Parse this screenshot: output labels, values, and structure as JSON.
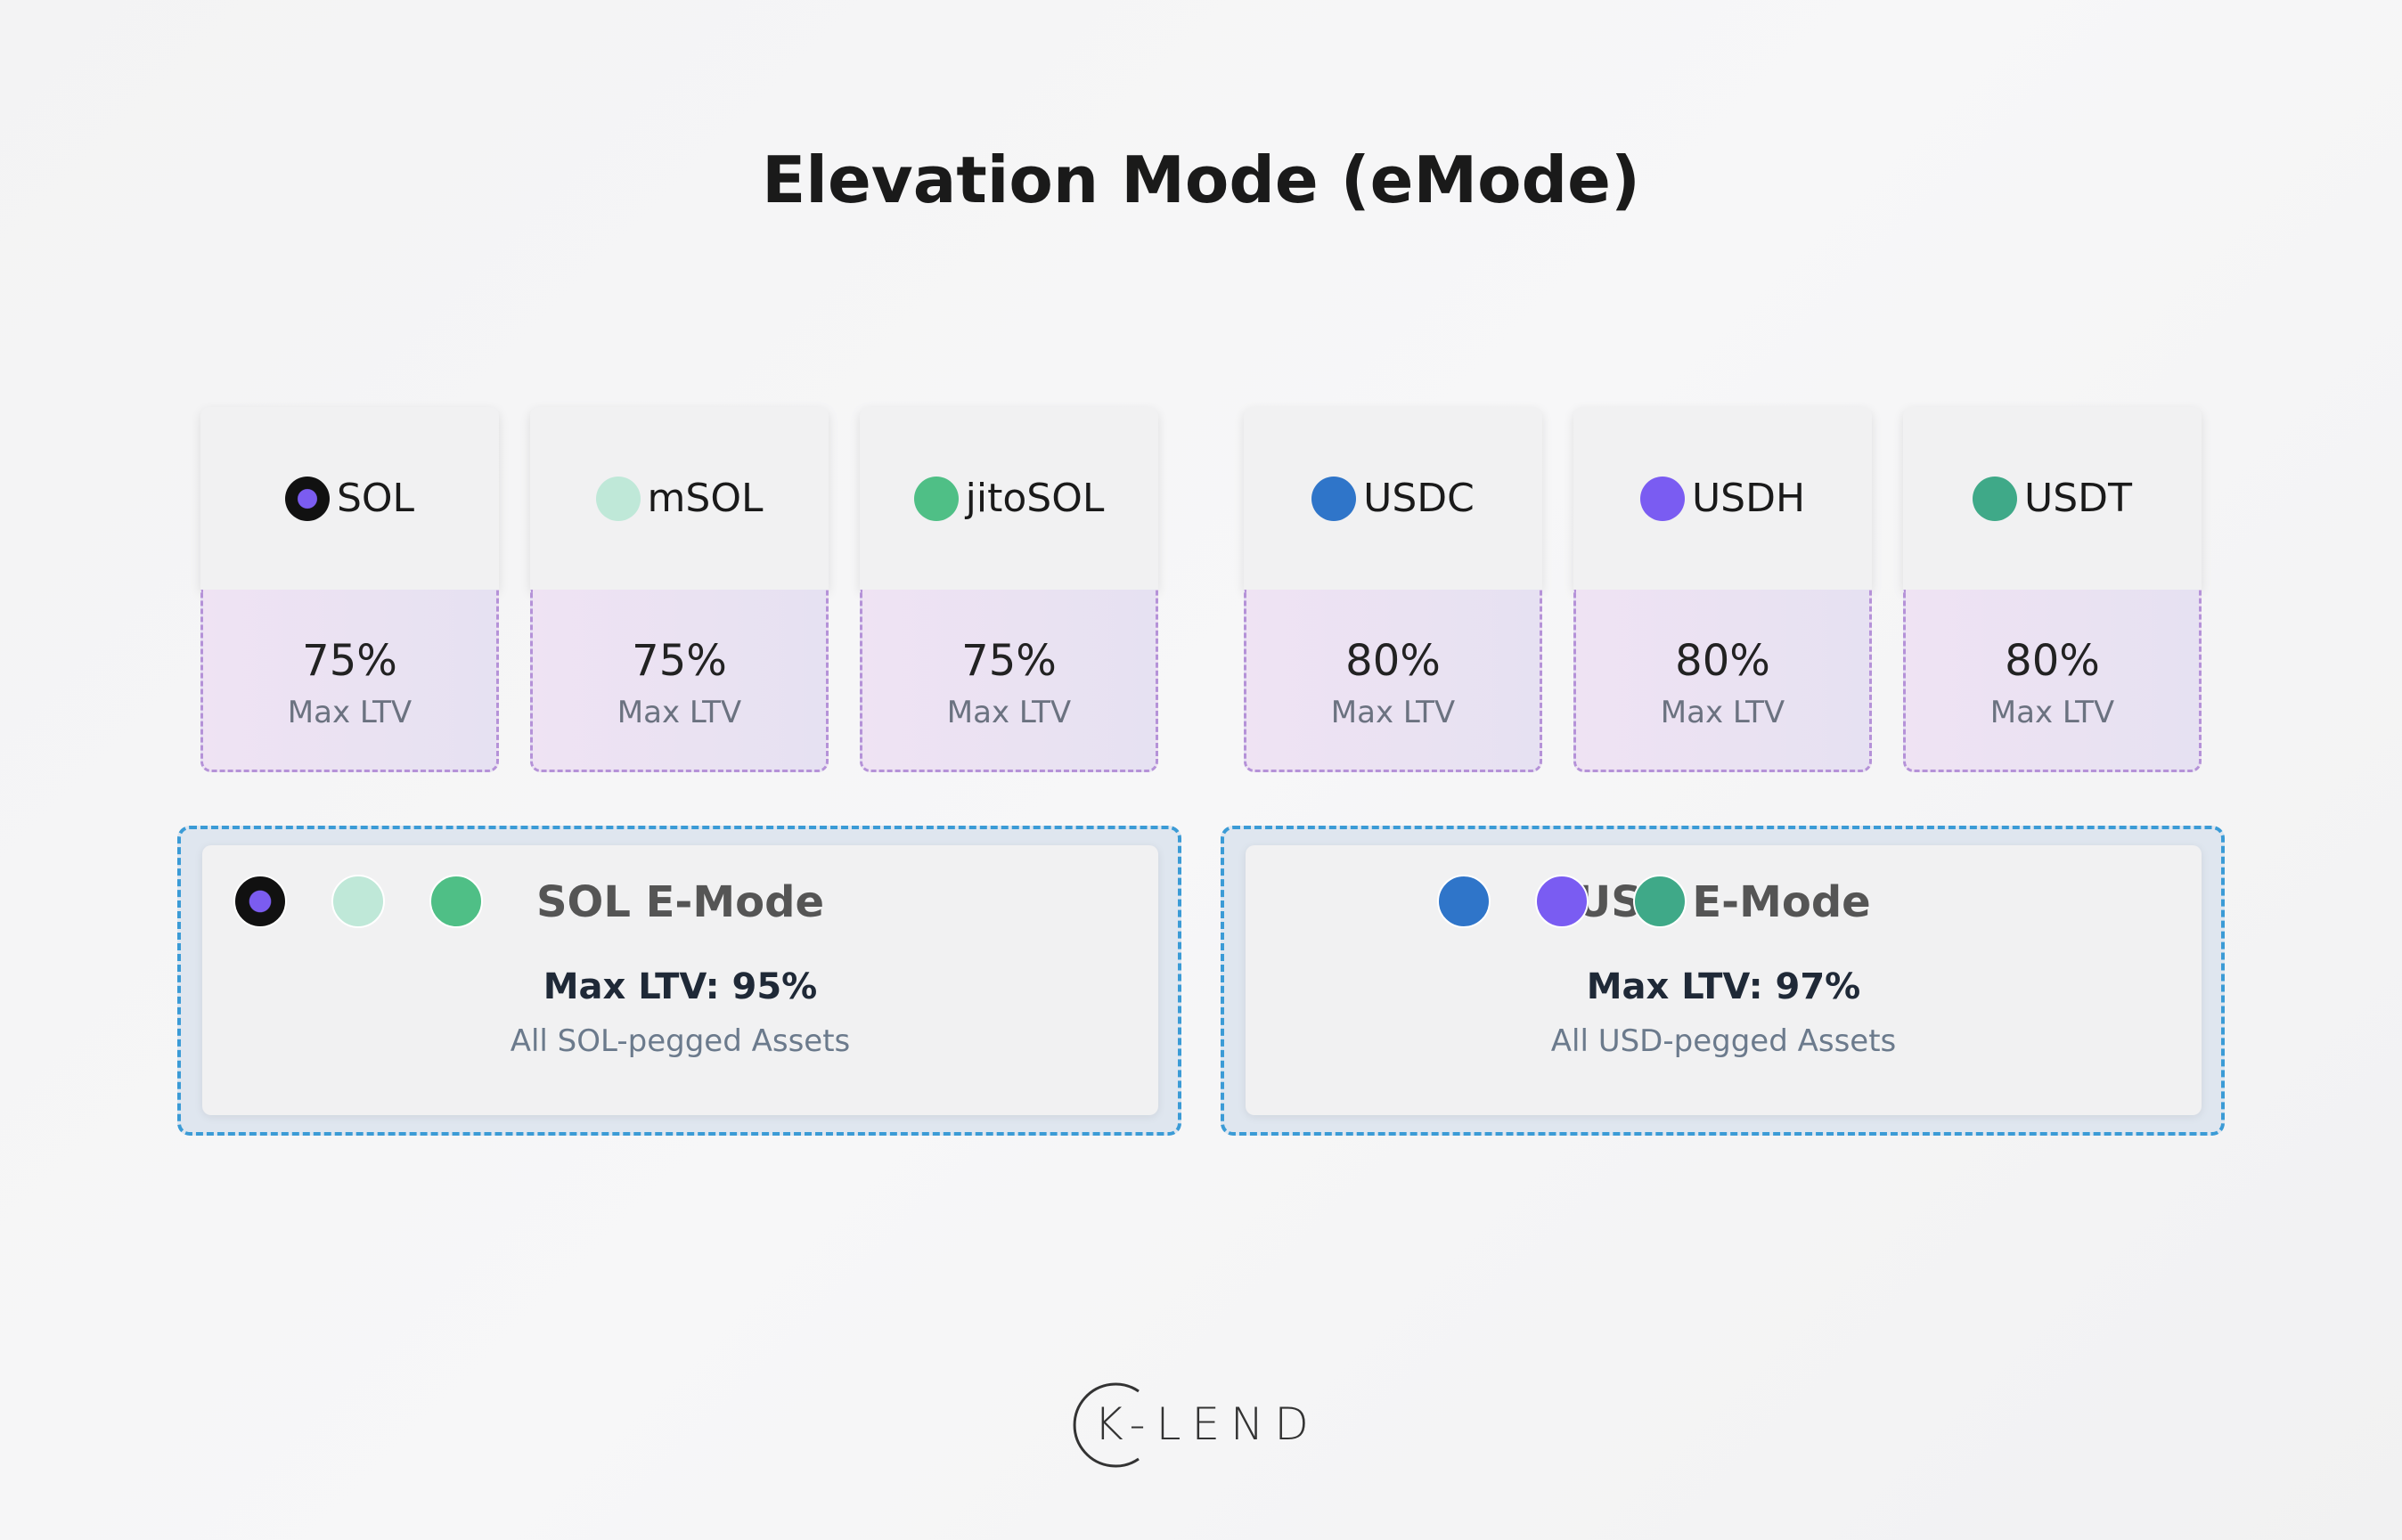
{
  "header": {
    "title": "Elevation Mode (eMode)"
  },
  "assets": [
    {
      "name": "SOL",
      "ltv": "75%",
      "label": "Max LTV"
    },
    {
      "name": "mSOL",
      "ltv": "75%",
      "label": "Max LTV"
    },
    {
      "name": "jitoSOL",
      "ltv": "75%",
      "label": "Max LTV"
    },
    {
      "name": "USDC",
      "ltv": "80%",
      "label": "Max LTV"
    },
    {
      "name": "USDH",
      "ltv": "80%",
      "label": "Max LTV"
    },
    {
      "name": "USDT",
      "ltv": "80%",
      "label": "Max LTV"
    }
  ],
  "groups": [
    {
      "title": "SOL E-Mode",
      "max_ltv": "Max LTV: 95%",
      "description": "All SOL-pegged Assets"
    },
    {
      "title": "USD E-Mode",
      "max_ltv": "Max LTV: 97%",
      "description": "All USD-pegged Assets"
    }
  ],
  "logo": {
    "text": "K-LEND"
  }
}
